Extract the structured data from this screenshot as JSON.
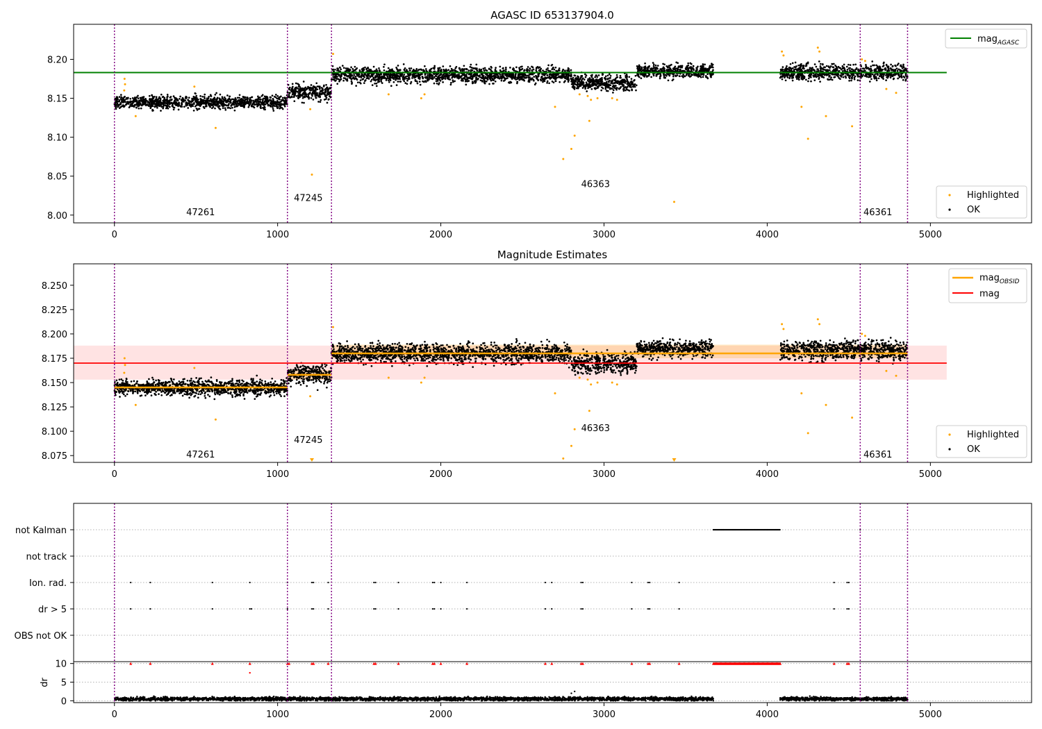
{
  "chart_data": [
    {
      "type": "scatter",
      "title": "AGASC ID 653137904.0",
      "xlim": [
        -250,
        5620
      ],
      "ylim": [
        7.99,
        8.245
      ],
      "yticks": [
        8.0,
        8.05,
        8.1,
        8.15,
        8.2
      ],
      "ytick_labels": [
        "8.00",
        "8.05",
        "8.10",
        "8.15",
        "8.20"
      ],
      "xticks": [
        0,
        1000,
        2000,
        3000,
        4000,
        5000
      ],
      "xtick_labels": [
        "0",
        "1000",
        "2000",
        "3000",
        "4000",
        "5000"
      ],
      "grid": false,
      "obsid_boundaries": [
        0,
        1060,
        1330,
        4570,
        4860
      ],
      "obsid_labels": [
        {
          "text": "47261",
          "x": 440,
          "y": 8.0
        },
        {
          "text": "47245",
          "x": 1100,
          "y": 8.018
        },
        {
          "text": "46363",
          "x": 2860,
          "y": 8.036
        },
        {
          "text": "46361",
          "x": 4590,
          "y": 8.0
        }
      ],
      "mag_agasc": 8.183,
      "mag_agasc_range": [
        0,
        5100
      ],
      "ok_segments": [
        {
          "x0": 0,
          "x1": 1060,
          "center": 8.145,
          "spread": 0.006
        },
        {
          "x0": 1060,
          "x1": 1330,
          "center": 8.158,
          "spread": 0.007
        },
        {
          "x0": 1330,
          "x1": 2800,
          "center": 8.18,
          "spread": 0.007
        },
        {
          "x0": 2800,
          "x1": 3200,
          "center": 8.17,
          "spread": 0.007
        },
        {
          "x0": 3200,
          "x1": 3670,
          "center": 8.185,
          "spread": 0.006
        },
        {
          "x0": 4080,
          "x1": 4860,
          "center": 8.183,
          "spread": 0.007
        }
      ],
      "highlighted_points": [
        [
          60,
          8.16
        ],
        [
          62,
          8.175
        ],
        [
          65,
          8.168
        ],
        [
          130,
          8.127
        ],
        [
          490,
          8.165
        ],
        [
          620,
          8.112
        ],
        [
          1200,
          8.136
        ],
        [
          1210,
          8.052
        ],
        [
          1340,
          8.207
        ],
        [
          1680,
          8.155
        ],
        [
          1880,
          8.15
        ],
        [
          1900,
          8.155
        ],
        [
          2700,
          8.139
        ],
        [
          2750,
          8.072
        ],
        [
          2800,
          8.085
        ],
        [
          2820,
          8.102
        ],
        [
          2850,
          8.155
        ],
        [
          2900,
          8.153
        ],
        [
          2910,
          8.121
        ],
        [
          2920,
          8.148
        ],
        [
          2960,
          8.15
        ],
        [
          3050,
          8.15
        ],
        [
          3080,
          8.148
        ],
        [
          3430,
          8.017
        ],
        [
          4090,
          8.21
        ],
        [
          4100,
          8.205
        ],
        [
          4210,
          8.139
        ],
        [
          4250,
          8.098
        ],
        [
          4310,
          8.215
        ],
        [
          4320,
          8.21
        ],
        [
          4360,
          8.127
        ],
        [
          4520,
          8.114
        ],
        [
          4580,
          8.2
        ],
        [
          4600,
          8.198
        ],
        [
          4730,
          8.162
        ],
        [
          4790,
          8.157
        ]
      ],
      "legend_upper": [
        {
          "label": "mag",
          "sub": "AGASC",
          "color": "#008000"
        }
      ],
      "legend_lower": [
        {
          "label": "Highlighted",
          "color": "#ffa500"
        },
        {
          "label": "OK",
          "color": "#000000"
        }
      ],
      "legend_placement": [
        "upper right",
        "lower right"
      ]
    },
    {
      "type": "scatter",
      "title": "Magnitude Estimates",
      "xlim": [
        -250,
        5620
      ],
      "ylim": [
        8.068,
        8.272
      ],
      "yticks": [
        8.075,
        8.1,
        8.125,
        8.15,
        8.175,
        8.2,
        8.225,
        8.25
      ],
      "ytick_labels": [
        "8.075",
        "8.100",
        "8.125",
        "8.150",
        "8.175",
        "8.200",
        "8.225",
        "8.250"
      ],
      "xticks": [
        0,
        1000,
        2000,
        3000,
        4000,
        5000
      ],
      "xtick_labels": [
        "0",
        "1000",
        "2000",
        "3000",
        "4000",
        "5000"
      ],
      "grid": false,
      "obsid_boundaries": [
        0,
        1060,
        1330,
        4570,
        4860
      ],
      "obsid_labels": [
        {
          "text": "47261",
          "x": 440,
          "y": 8.073
        },
        {
          "text": "47245",
          "x": 1100,
          "y": 8.088
        },
        {
          "text": "46363",
          "x": 2860,
          "y": 8.1
        },
        {
          "text": "46361",
          "x": 4590,
          "y": 8.073
        }
      ],
      "mag": 8.17,
      "mag_band": [
        8.153,
        8.188
      ],
      "mag_range": [
        0,
        5100
      ],
      "mag_obsid": [
        {
          "x0": 0,
          "x1": 1060,
          "value": 8.145,
          "band": [
            8.141,
            8.149
          ]
        },
        {
          "x0": 1060,
          "x1": 1330,
          "value": 8.158,
          "band": [
            8.153,
            8.163
          ]
        },
        {
          "x0": 1330,
          "x1": 4860,
          "value": 8.18,
          "band": [
            8.175,
            8.189
          ]
        }
      ],
      "ok_segments": [
        {
          "x0": 0,
          "x1": 1060,
          "center": 8.145,
          "spread": 0.006
        },
        {
          "x0": 1060,
          "x1": 1330,
          "center": 8.158,
          "spread": 0.007
        },
        {
          "x0": 1330,
          "x1": 2800,
          "center": 8.18,
          "spread": 0.007
        },
        {
          "x0": 2800,
          "x1": 3200,
          "center": 8.17,
          "spread": 0.007
        },
        {
          "x0": 3200,
          "x1": 3670,
          "center": 8.185,
          "spread": 0.006
        },
        {
          "x0": 4080,
          "x1": 4860,
          "center": 8.183,
          "spread": 0.007
        }
      ],
      "highlighted_points": [
        [
          60,
          8.16
        ],
        [
          62,
          8.175
        ],
        [
          65,
          8.168
        ],
        [
          130,
          8.127
        ],
        [
          490,
          8.165
        ],
        [
          620,
          8.112
        ],
        [
          1200,
          8.136
        ],
        [
          1340,
          8.207
        ],
        [
          1680,
          8.155
        ],
        [
          1880,
          8.15
        ],
        [
          1900,
          8.155
        ],
        [
          2700,
          8.139
        ],
        [
          2750,
          8.072
        ],
        [
          2800,
          8.085
        ],
        [
          2820,
          8.102
        ],
        [
          2850,
          8.155
        ],
        [
          2900,
          8.153
        ],
        [
          2910,
          8.121
        ],
        [
          2920,
          8.148
        ],
        [
          2960,
          8.15
        ],
        [
          3050,
          8.15
        ],
        [
          3080,
          8.148
        ],
        [
          4090,
          8.21
        ],
        [
          4100,
          8.205
        ],
        [
          4210,
          8.139
        ],
        [
          4250,
          8.098
        ],
        [
          4310,
          8.215
        ],
        [
          4320,
          8.21
        ],
        [
          4360,
          8.127
        ],
        [
          4520,
          8.114
        ],
        [
          4580,
          8.2
        ],
        [
          4600,
          8.198
        ],
        [
          4730,
          8.162
        ],
        [
          4790,
          8.157
        ]
      ],
      "out_of_range_points": [
        1210,
        3430
      ],
      "legend_upper": [
        {
          "label": "mag",
          "sub": "OBSID",
          "color": "#ffa500"
        },
        {
          "label": "mag",
          "sub": "",
          "color": "#ff0000"
        }
      ],
      "legend_lower": [
        {
          "label": "Highlighted",
          "color": "#ffa500"
        },
        {
          "label": "OK",
          "color": "#000000"
        }
      ],
      "legend_placement": [
        "upper right",
        "lower right"
      ]
    },
    {
      "type": "scatter",
      "title": "",
      "xlim": [
        -250,
        5620
      ],
      "xticks": [
        0,
        1000,
        2000,
        3000,
        4000,
        5000
      ],
      "xtick_labels": [
        "0",
        "1000",
        "2000",
        "3000",
        "4000",
        "5000"
      ],
      "grid": "horizontal dotted",
      "obsid_boundaries": [
        0,
        1060,
        1330,
        4570,
        4860
      ],
      "flag_rows": [
        "not Kalman",
        "not track",
        "Ion. rad.",
        "dr > 5",
        "OBS not OK"
      ],
      "flags": {
        "not Kalman": {
          "ranges": [
            [
              3670,
              4080
            ]
          ],
          "points": [
            4570
          ]
        },
        "not track": {
          "ranges": [],
          "points": []
        },
        "Ion. rad.": {
          "ranges": [],
          "points": [
            100,
            220,
            600,
            830,
            1060,
            1210,
            1220,
            1310,
            1590,
            1600,
            1740,
            1950,
            1960,
            2000,
            2160,
            2640,
            2680,
            2860,
            2870,
            3170,
            3270,
            3280,
            3460,
            4410,
            4490,
            4500
          ]
        },
        "dr > 5": {
          "ranges": [],
          "points": [
            100,
            220,
            600,
            830,
            840,
            1060,
            1210,
            1220,
            1310,
            1590,
            1600,
            1740,
            1950,
            1960,
            2000,
            2160,
            2640,
            2680,
            2860,
            2870,
            3170,
            3270,
            3280,
            3460,
            4410,
            4490,
            4500
          ]
        },
        "OBS not OK": {
          "ranges": [],
          "points": []
        }
      },
      "dr_ylabel": "dr",
      "dr_ylim": [
        -0.5,
        10.5
      ],
      "dr_yticks": [
        0,
        5,
        10
      ],
      "dr_ytick_labels": [
        "0",
        "5",
        "10"
      ],
      "dr_clip_points": [
        100,
        220,
        600,
        830,
        1060,
        1070,
        1210,
        1220,
        1310,
        1590,
        1600,
        1740,
        1950,
        1960,
        2000,
        2160,
        2640,
        2680,
        2860,
        2870,
        3170,
        3270,
        3280,
        3460,
        4410,
        4490,
        4500
      ],
      "dr_clip_range": [
        3670,
        4080
      ],
      "dr_outliers": [
        [
          830,
          7.5
        ],
        [
          2800,
          2.0
        ],
        [
          2820,
          2.5
        ]
      ],
      "dr_segments": [
        {
          "x0": 0,
          "x1": 3670,
          "center": 0.5,
          "spread": 0.35
        },
        {
          "x0": 4080,
          "x1": 4860,
          "center": 0.5,
          "spread": 0.35
        }
      ]
    }
  ]
}
